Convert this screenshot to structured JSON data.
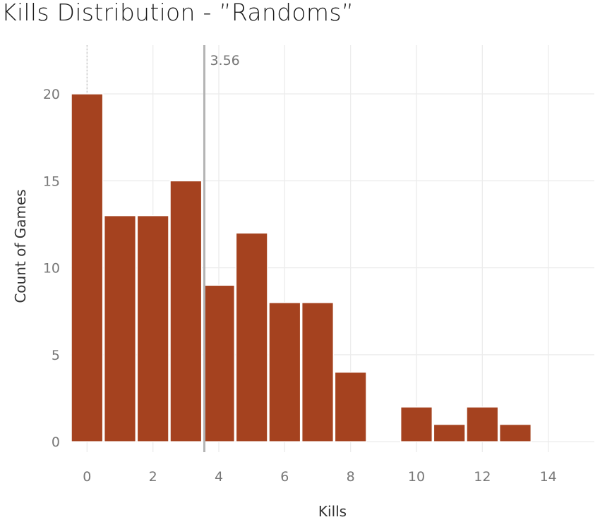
{
  "chart_data": {
    "type": "bar",
    "title": "Kills Distribution - ”Randoms”",
    "xlabel": "Kills",
    "ylabel": "Count of Games",
    "x": [
      0,
      1,
      2,
      3,
      4,
      5,
      6,
      7,
      8,
      9,
      10,
      11,
      12,
      13
    ],
    "values": [
      20,
      13,
      13,
      15,
      9,
      12,
      8,
      8,
      4,
      0,
      2,
      1,
      2,
      1
    ],
    "xlim": [
      -0.5,
      15.4
    ],
    "ylim": [
      -0.6,
      22.8
    ],
    "x_ticks": [
      0,
      2,
      4,
      6,
      8,
      10,
      12,
      14
    ],
    "y_ticks": [
      0,
      5,
      10,
      15,
      20
    ],
    "reference_line": {
      "value": 3.56,
      "label": "3.56"
    },
    "grid": true,
    "bar_color": "#a5421f"
  }
}
